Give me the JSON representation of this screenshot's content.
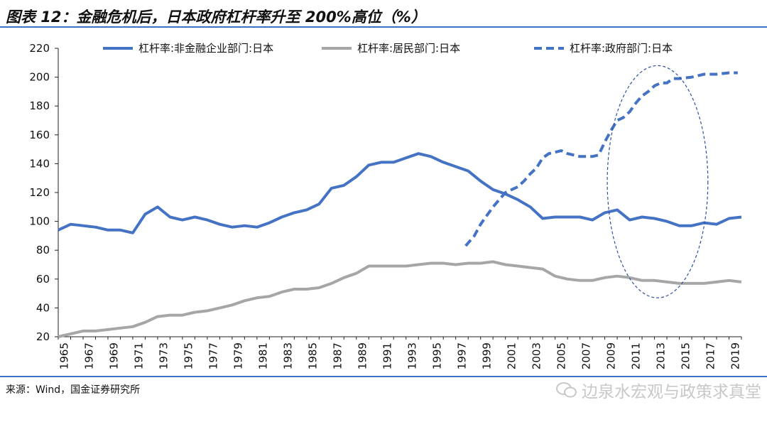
{
  "title": "图表 12：金融危机后，日本政府杠杆率升至 200%高位（%）",
  "source": "来源：Wind，国金证券研究所",
  "watermark": "边泉水宏观与政策求真堂",
  "colors": {
    "corporate": "#4472c4",
    "household": "#a6a6a6",
    "government": "#4472c4",
    "rule": "#3a73c5",
    "ellipse": "#2f4f9c"
  },
  "chart_data": {
    "type": "line",
    "ylim": [
      20,
      220
    ],
    "xlim": [
      1965,
      2020
    ],
    "y_ticks": [
      "20",
      "40",
      "60",
      "80",
      "100",
      "120",
      "140",
      "160",
      "180",
      "200",
      "220"
    ],
    "x_ticks": [
      "1965",
      "1967",
      "1969",
      "1971",
      "1973",
      "1975",
      "1977",
      "1979",
      "1981",
      "1983",
      "1985",
      "1987",
      "1989",
      "1991",
      "1993",
      "1995",
      "1997",
      "1999",
      "2001",
      "2003",
      "2005",
      "2007",
      "2009",
      "2011",
      "2013",
      "2015",
      "2017",
      "2019"
    ],
    "annotation": "dashed ellipse highlighting 2009-2015",
    "series": [
      {
        "name": "杠杆率:非金融企业部门:日本",
        "style": "solid",
        "x": [
          1965,
          1966,
          1967,
          1968,
          1969,
          1970,
          1971,
          1972,
          1973,
          1974,
          1975,
          1976,
          1977,
          1978,
          1979,
          1980,
          1981,
          1982,
          1983,
          1984,
          1985,
          1986,
          1987,
          1988,
          1989,
          1990,
          1991,
          1992,
          1993,
          1994,
          1995,
          1996,
          1997,
          1998,
          1999,
          2000,
          2001,
          2002,
          2003,
          2004,
          2005,
          2006,
          2007,
          2008,
          2009,
          2010,
          2011,
          2012,
          2013,
          2014,
          2015,
          2016,
          2017,
          2018,
          2019,
          2020
        ],
        "values": [
          94,
          98,
          97,
          96,
          94,
          94,
          92,
          105,
          110,
          103,
          101,
          103,
          101,
          98,
          96,
          97,
          96,
          99,
          103,
          106,
          108,
          112,
          123,
          125,
          131,
          139,
          141,
          141,
          144,
          147,
          145,
          141,
          138,
          135,
          128,
          122,
          119,
          115,
          110,
          102,
          103,
          103,
          103,
          101,
          106,
          108,
          101,
          103,
          102,
          100,
          97,
          97,
          99,
          98,
          102,
          103
        ]
      },
      {
        "name": "杠杆率:居民部门:日本",
        "style": "solid",
        "x": [
          1965,
          1966,
          1967,
          1968,
          1969,
          1970,
          1971,
          1972,
          1973,
          1974,
          1975,
          1976,
          1977,
          1978,
          1979,
          1980,
          1981,
          1982,
          1983,
          1984,
          1985,
          1986,
          1987,
          1988,
          1989,
          1990,
          1991,
          1992,
          1993,
          1994,
          1995,
          1996,
          1997,
          1998,
          1999,
          2000,
          2001,
          2002,
          2003,
          2004,
          2005,
          2006,
          2007,
          2008,
          2009,
          2010,
          2011,
          2012,
          2013,
          2014,
          2015,
          2016,
          2017,
          2018,
          2019,
          2020
        ],
        "values": [
          20,
          22,
          24,
          24,
          25,
          26,
          27,
          30,
          34,
          35,
          35,
          37,
          38,
          40,
          42,
          45,
          47,
          48,
          51,
          53,
          53,
          54,
          57,
          61,
          64,
          69,
          69,
          69,
          69,
          70,
          71,
          71,
          70,
          71,
          71,
          72,
          70,
          69,
          68,
          67,
          62,
          60,
          59,
          59,
          61,
          62,
          61,
          59,
          59,
          58,
          57,
          57,
          57,
          58,
          59,
          58
        ]
      },
      {
        "name": "杠杆率:政府部门:日本",
        "style": "dashed",
        "x": [
          1997.8,
          1998.5,
          1999,
          1999.5,
          2000,
          2000.5,
          2001,
          2001.5,
          2002,
          2002.5,
          2003,
          2003.5,
          2004,
          2004.5,
          2005,
          2005.5,
          2006,
          2007,
          2008,
          2008.5,
          2009,
          2009.5,
          2010,
          2010.5,
          2011,
          2011.5,
          2012,
          2012.5,
          2013,
          2013.5,
          2014,
          2014.5,
          2015,
          2016,
          2017,
          2018,
          2019,
          2019.7
        ],
        "values": [
          83,
          90,
          98,
          104,
          110,
          115,
          120,
          122,
          124,
          128,
          133,
          137,
          144,
          147,
          148,
          149,
          147,
          145,
          145,
          146,
          155,
          163,
          170,
          172,
          176,
          182,
          187,
          190,
          194,
          196,
          196,
          199,
          199,
          200,
          202,
          202,
          203,
          203
        ]
      }
    ]
  }
}
